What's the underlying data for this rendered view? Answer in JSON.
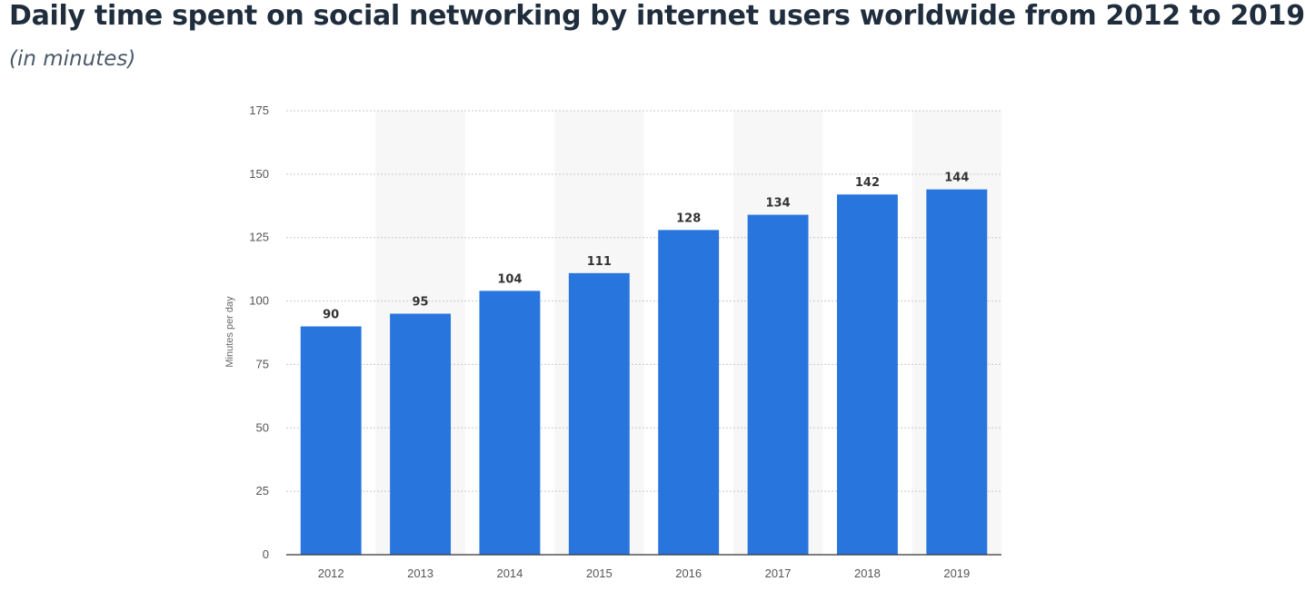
{
  "header": {
    "title": "Daily time spent on social networking by internet users worldwide from 2012 to 2019",
    "subtitle": "(in minutes)"
  },
  "chart_data": {
    "type": "bar",
    "categories": [
      "2012",
      "2013",
      "2014",
      "2015",
      "2016",
      "2017",
      "2018",
      "2019"
    ],
    "values": [
      90,
      95,
      104,
      111,
      128,
      134,
      142,
      144
    ],
    "xlabel": "",
    "ylabel": "Minutes per day",
    "ylim": [
      0,
      175
    ],
    "yticks": [
      0,
      25,
      50,
      75,
      100,
      125,
      150,
      175
    ],
    "grid": true,
    "bar_color": "#2876dd",
    "band_color": "#f7f7f7"
  }
}
